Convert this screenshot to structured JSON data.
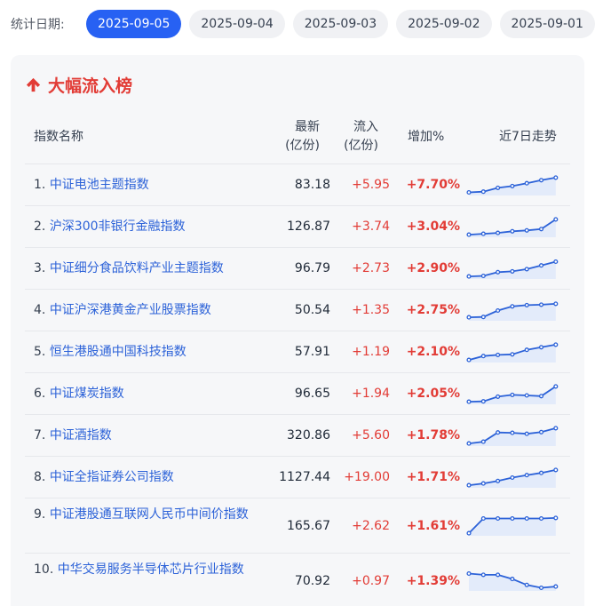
{
  "filter": {
    "label": "统计日期:",
    "dates": [
      "2025-09-05",
      "2025-09-04",
      "2025-09-03",
      "2025-09-02",
      "2025-09-01"
    ],
    "selected": "2025-09-05"
  },
  "panel": {
    "title": "大幅流入榜",
    "icon": "arrow-up-icon",
    "columns": {
      "name": "指数名称",
      "latest": [
        "最新",
        "(亿份)"
      ],
      "inflow": [
        "流入",
        "(亿份)"
      ],
      "pct": "增加%",
      "trend": "近7日走势"
    },
    "rows": [
      {
        "rank": "1.",
        "name": "中证电池主题指数",
        "latest": "83.18",
        "inflow": "+5.95",
        "pct": "+7.70%",
        "trend": [
          0.08,
          0.12,
          0.35,
          0.45,
          0.62,
          0.8,
          0.95
        ]
      },
      {
        "rank": "2.",
        "name": "沪深300非银行金融指数",
        "latest": "126.87",
        "inflow": "+3.74",
        "pct": "+3.04%",
        "trend": [
          0.05,
          0.1,
          0.15,
          0.25,
          0.3,
          0.38,
          0.95
        ]
      },
      {
        "rank": "3.",
        "name": "中证细分食品饮料产业主题指数",
        "latest": "96.79",
        "inflow": "+2.73",
        "pct": "+2.90%",
        "trend": [
          0.05,
          0.08,
          0.3,
          0.35,
          0.48,
          0.7,
          0.92
        ]
      },
      {
        "rank": "4.",
        "name": "中证沪深港黄金产业股票指数",
        "latest": "50.54",
        "inflow": "+1.35",
        "pct": "+2.75%",
        "trend": [
          0.1,
          0.12,
          0.5,
          0.75,
          0.82,
          0.85,
          0.9
        ]
      },
      {
        "rank": "5.",
        "name": "恒生港股通中国科技指数",
        "latest": "57.91",
        "inflow": "+1.19",
        "pct": "+2.10%",
        "trend": [
          0.05,
          0.28,
          0.35,
          0.38,
          0.65,
          0.8,
          0.95
        ]
      },
      {
        "rank": "6.",
        "name": "中证煤炭指数",
        "latest": "96.65",
        "inflow": "+1.94",
        "pct": "+2.05%",
        "trend": [
          0.05,
          0.07,
          0.35,
          0.45,
          0.42,
          0.38,
          0.95
        ]
      },
      {
        "rank": "7.",
        "name": "中证酒指数",
        "latest": "320.86",
        "inflow": "+5.60",
        "pct": "+1.78%",
        "trend": [
          0.05,
          0.15,
          0.7,
          0.68,
          0.62,
          0.72,
          0.95
        ]
      },
      {
        "rank": "8.",
        "name": "中证全指证券公司指数",
        "latest": "1127.44",
        "inflow": "+19.00",
        "pct": "+1.71%",
        "trend": [
          0.05,
          0.15,
          0.3,
          0.5,
          0.65,
          0.78,
          0.95
        ]
      },
      {
        "rank": "9.",
        "name": "中证港股通互联网人民币中间价指数",
        "latest": "165.67",
        "inflow": "+2.62",
        "pct": "+1.61%",
        "trend": [
          0.05,
          0.92,
          0.92,
          0.92,
          0.92,
          0.92,
          0.95
        ]
      },
      {
        "rank": "10.",
        "name": "中华交易服务半导体芯片行业指数",
        "latest": "70.92",
        "inflow": "+0.97",
        "pct": "+1.39%",
        "trend": [
          0.92,
          0.85,
          0.85,
          0.6,
          0.25,
          0.08,
          0.15
        ]
      }
    ]
  },
  "colors": {
    "accent": "#2761f3",
    "positive": "#e23c36",
    "link": "#2c62d8",
    "sparkline": "#2c62d8"
  }
}
